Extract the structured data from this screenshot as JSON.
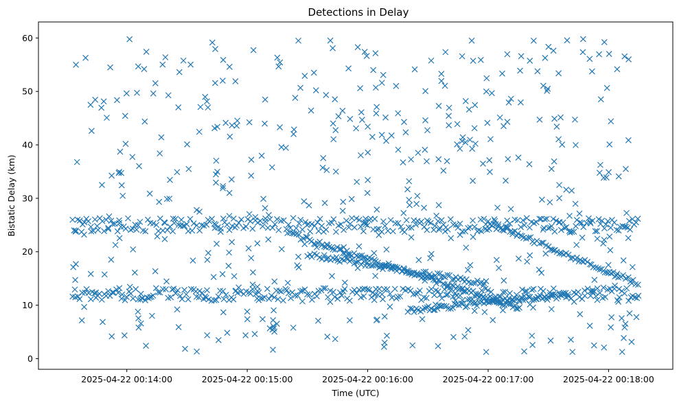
{
  "chart_data": {
    "type": "scatter",
    "title": "Detections in Delay",
    "xlabel": "Time (UTC)",
    "ylabel": "Bistatic Delay (km)",
    "marker": "x",
    "color": "#1f77b4",
    "xlim_seconds": [
      -44,
      272
    ],
    "ylim": [
      -2,
      63
    ],
    "x_ticks": [
      {
        "t": 0,
        "label": "2025-04-22 00:14:00"
      },
      {
        "t": 60,
        "label": "2025-04-22 00:15:00"
      },
      {
        "t": 120,
        "label": "2025-04-22 00:16:00"
      },
      {
        "t": 180,
        "label": "2025-04-22 00:17:00"
      },
      {
        "t": 240,
        "label": "2025-04-22 00:18:00"
      }
    ],
    "y_ticks": [
      0,
      10,
      20,
      30,
      40,
      50,
      60
    ],
    "time_span_seconds": [
      -27,
      255
    ],
    "series": [
      {
        "name": "Track near 12 km",
        "t_range": [
          -27,
          255
        ],
        "delay_range": [
          12,
          12
        ]
      },
      {
        "name": "Track near 25 km",
        "t_range": [
          -27,
          255
        ],
        "delay_range": [
          25,
          25
        ]
      },
      {
        "name": "Descending track",
        "t_range": [
          80,
          195
        ],
        "delay_range": [
          23.5,
          9.5
        ]
      },
      {
        "name": "Descending track",
        "t_range": [
          90,
          180
        ],
        "delay_range": [
          19.5,
          14
        ]
      },
      {
        "name": "Descending track",
        "t_range": [
          180,
          255
        ],
        "delay_range": [
          25.5,
          14
        ]
      },
      {
        "name": "Ascending track",
        "t_range": [
          140,
          220
        ],
        "delay_range": [
          9,
          12
        ]
      },
      {
        "name": "Random detections",
        "t_range": [
          -27,
          255
        ],
        "delay_range": [
          0,
          60
        ]
      }
    ],
    "grid": false
  }
}
